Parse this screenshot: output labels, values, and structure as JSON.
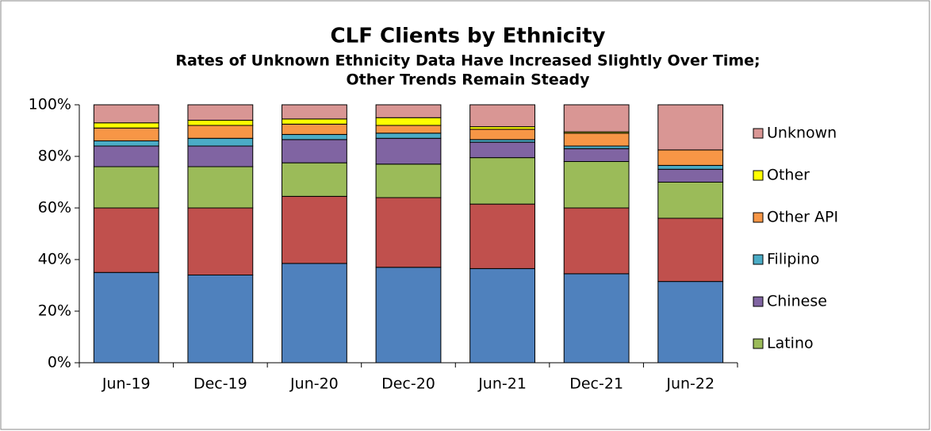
{
  "chart_data": {
    "type": "stacked_bar",
    "title": "CLF Clients by Ethnicity",
    "subtitle": [
      "Rates of Unknown Ethnicity Data Have Increased Slightly Over Time;",
      "Other Trends Remain Steady"
    ],
    "categories": [
      "Jun-19",
      "Dec-19",
      "Jun-20",
      "Dec-20",
      "Jun-21",
      "Dec-21",
      "Jun-22"
    ],
    "series": [
      {
        "name": null,
        "color": "#4f81bd",
        "values": [
          35,
          34,
          38.5,
          37,
          36.5,
          34.5,
          31.5
        ]
      },
      {
        "name": null,
        "color": "#c0504d",
        "values": [
          25,
          26,
          26,
          27,
          25,
          25.5,
          24.5
        ]
      },
      {
        "name": "Latino",
        "color": "#9bbb59",
        "values": [
          16,
          16,
          13,
          13,
          18,
          18,
          14
        ]
      },
      {
        "name": "Chinese",
        "color": "#8064a2",
        "values": [
          8,
          8,
          9,
          10,
          6,
          5,
          5
        ]
      },
      {
        "name": "Filipino",
        "color": "#4bacc6",
        "values": [
          2,
          3,
          2,
          2,
          1,
          1,
          1.5
        ]
      },
      {
        "name": "Other API",
        "color": "#f79646",
        "values": [
          5,
          5,
          4,
          3,
          4,
          5,
          6
        ]
      },
      {
        "name": "Other",
        "color": "#ffff00",
        "values": [
          2,
          2,
          2,
          3,
          1,
          0.5,
          0
        ]
      },
      {
        "name": "Unknown",
        "color": "#d99694",
        "values": [
          7,
          6,
          5.5,
          5,
          8.5,
          10.5,
          17.5
        ]
      }
    ],
    "ylim": [
      0,
      100
    ],
    "yticks": [
      {
        "value": 0,
        "label": "0%"
      },
      {
        "value": 20,
        "label": "20%"
      },
      {
        "value": 40,
        "label": "40%"
      },
      {
        "value": 60,
        "label": "60%"
      },
      {
        "value": 80,
        "label": "80%"
      },
      {
        "value": 100,
        "label": "100%"
      }
    ],
    "legend": "right"
  }
}
